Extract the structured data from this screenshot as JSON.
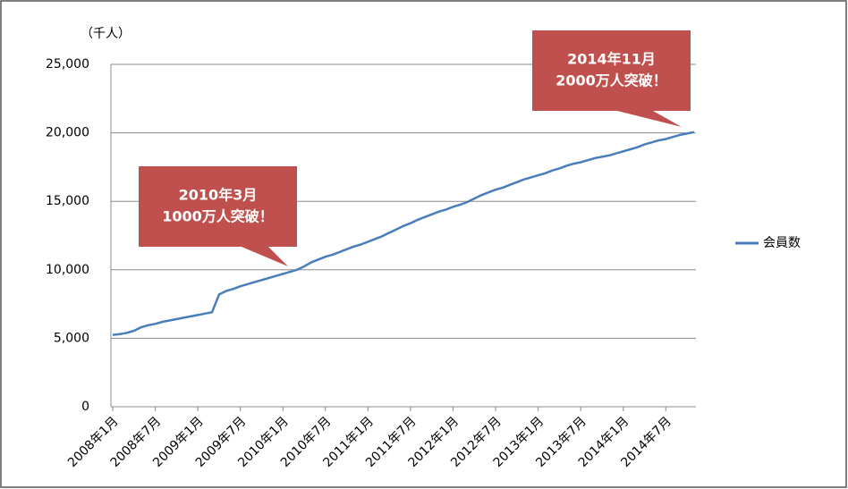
{
  "chart_data": {
    "type": "line",
    "y_unit_label": "（千人）",
    "categories": [
      "2008年1月",
      null,
      null,
      null,
      null,
      null,
      "2008年7月",
      null,
      null,
      null,
      null,
      null,
      "2009年1月",
      null,
      null,
      null,
      null,
      null,
      "2009年7月",
      null,
      null,
      null,
      null,
      null,
      "2010年1月",
      null,
      null,
      null,
      null,
      null,
      "2010年7月",
      null,
      null,
      null,
      null,
      null,
      "2011年1月",
      null,
      null,
      null,
      null,
      null,
      "2011年7月",
      null,
      null,
      null,
      null,
      null,
      "2012年1月",
      null,
      null,
      null,
      null,
      null,
      "2012年7月",
      null,
      null,
      null,
      null,
      null,
      "2013年1月",
      null,
      null,
      null,
      null,
      null,
      "2013年7月",
      null,
      null,
      null,
      null,
      null,
      "2014年1月",
      null,
      null,
      null,
      null,
      null,
      "2014年7月",
      null,
      null,
      null,
      null
    ],
    "series": [
      {
        "name": "会員数",
        "color": "#4a7ebb",
        "values": [
          5250,
          5300,
          5400,
          5550,
          5800,
          5950,
          6050,
          6200,
          6300,
          6400,
          6500,
          6600,
          6700,
          6800,
          6900,
          8200,
          8450,
          8600,
          8800,
          8950,
          9100,
          9250,
          9400,
          9550,
          9700,
          9850,
          10000,
          10250,
          10550,
          10750,
          10950,
          11100,
          11300,
          11500,
          11700,
          11850,
          12050,
          12250,
          12450,
          12700,
          12950,
          13200,
          13400,
          13650,
          13850,
          14050,
          14250,
          14400,
          14600,
          14750,
          14950,
          15200,
          15450,
          15650,
          15850,
          16000,
          16200,
          16400,
          16600,
          16750,
          16900,
          17050,
          17250,
          17400,
          17600,
          17750,
          17850,
          18000,
          18150,
          18250,
          18350,
          18500,
          18650,
          18800,
          18950,
          19150,
          19300,
          19450,
          19550,
          19700,
          19850,
          19950,
          20050
        ]
      }
    ],
    "ylim": [
      0,
      25000
    ],
    "yticks": [
      0,
      {
        "value": 5000,
        "label": "5,000"
      },
      {
        "value": 10000,
        "label": "10,000"
      },
      {
        "value": 15000,
        "label": "15,000"
      },
      {
        "value": 20000,
        "label": "20,000"
      },
      {
        "value": 25000,
        "label": "25,000"
      }
    ],
    "grid": true,
    "legend": "right",
    "annotation_color": "#c0504d",
    "annotations": [
      {
        "lines": [
          "2010年3月",
          "1000万人突破！"
        ]
      },
      {
        "lines": [
          "2014年11月",
          "2000万人突破！"
        ]
      }
    ]
  }
}
